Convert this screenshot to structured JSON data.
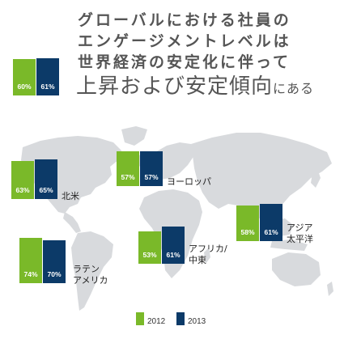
{
  "title": {
    "line1": "グローバルにおける社員の",
    "line2": "エンゲージメントレベルは",
    "line3": "世界経済の安定化に伴って",
    "line4_main": "上昇および安定傾向",
    "line4_small": "にある"
  },
  "colors": {
    "y2012": "#7ab929",
    "y2013": "#0c3a68",
    "map": "#d8dadd",
    "title": "#555555"
  },
  "chart_data": {
    "type": "bar",
    "series": [
      {
        "name": "2012",
        "values": [
          60,
          63,
          57,
          74,
          53,
          58
        ]
      },
      {
        "name": "2013",
        "values": [
          61,
          65,
          57,
          70,
          61,
          61
        ]
      }
    ],
    "categories": [
      "グローバル",
      "北米",
      "ヨーロッパ",
      "ラテンアメリカ",
      "アフリカ/中東",
      "アジア太平洋"
    ],
    "region_labels": {
      "north_america": "北米",
      "europe": "ヨーロッパ",
      "latam": "ラテン\nアメリカ",
      "africa": "アフリカ/\n中東",
      "asia": "アジア\n太平洋"
    },
    "legend": [
      "2012",
      "2013"
    ],
    "value_suffix": "%"
  }
}
